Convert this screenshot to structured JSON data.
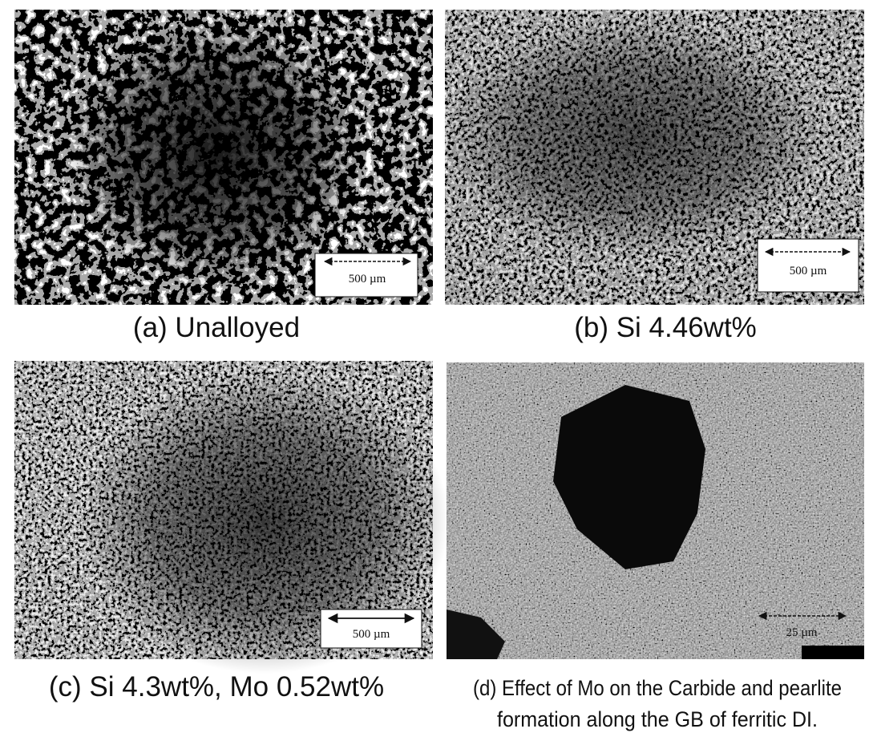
{
  "panels": [
    {
      "caption": "(a) Unalloyed",
      "scale_bar": "500 µm"
    },
    {
      "caption": "(b) Si 4.46wt%",
      "scale_bar": "500 µm"
    },
    {
      "caption": "(c) Si 4.3wt%, Mo 0.52wt%",
      "scale_bar": "500 µm"
    },
    {
      "caption": [
        "(d) Effect of Mo on the Carbide and pearlite",
        "formation along the GB of ferritic DI."
      ],
      "scale_bar": "25 µm"
    }
  ]
}
